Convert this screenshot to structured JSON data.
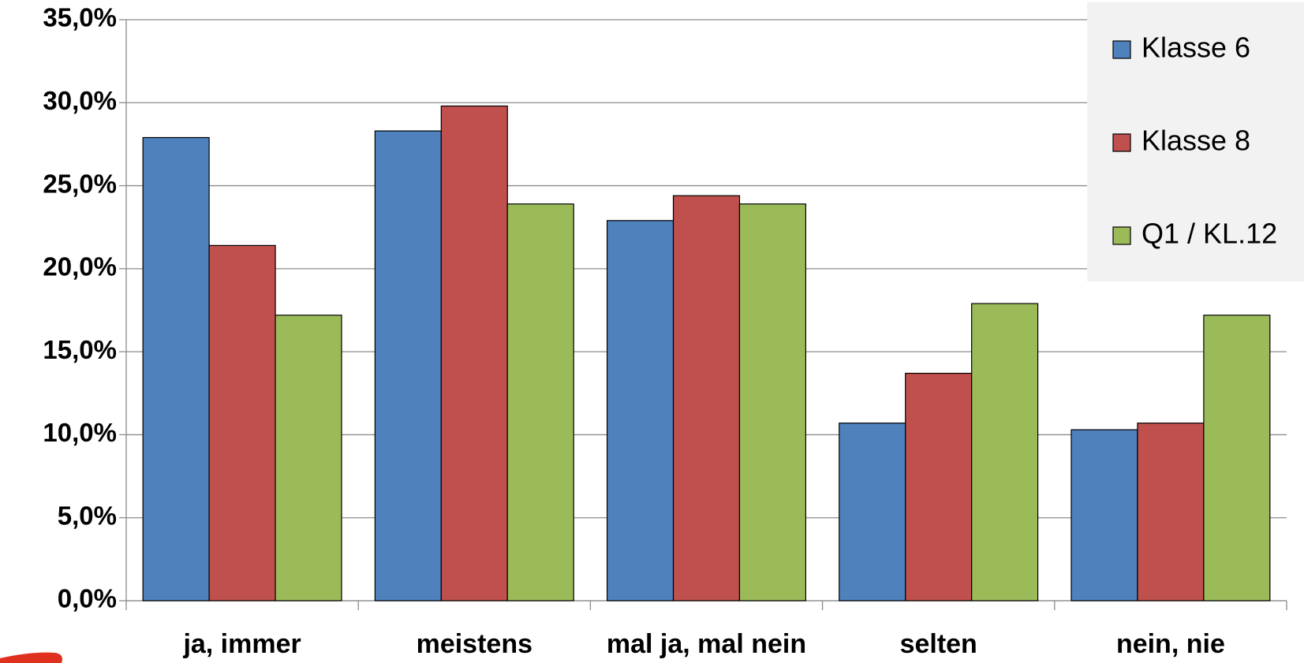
{
  "chart_data": {
    "type": "bar",
    "categories": [
      "ja, immer",
      "meistens",
      "mal ja, mal nein",
      "selten",
      "nein, nie"
    ],
    "series": [
      {
        "name": "Klasse 6",
        "color": "#4f81bd",
        "values": [
          27.9,
          28.3,
          22.9,
          10.7,
          10.3
        ]
      },
      {
        "name": "Klasse 8",
        "color": "#c0504d",
        "values": [
          21.4,
          29.8,
          24.4,
          13.7,
          10.7
        ]
      },
      {
        "name": "Q1 / KL.12",
        "color": "#9bbb59",
        "values": [
          17.2,
          23.9,
          23.9,
          17.9,
          17.2
        ]
      }
    ],
    "ylim": [
      0,
      35
    ],
    "yticks": [
      {
        "value": 0,
        "label": "0,0%"
      },
      {
        "value": 5,
        "label": "5,0%"
      },
      {
        "value": 10,
        "label": "10,0%"
      },
      {
        "value": 15,
        "label": "15,0%"
      },
      {
        "value": 20,
        "label": "20,0%"
      },
      {
        "value": 25,
        "label": "25,0%"
      },
      {
        "value": 30,
        "label": "30,0%"
      },
      {
        "value": 35,
        "label": "35,0%"
      }
    ],
    "grid": true,
    "legend": "top-right"
  }
}
